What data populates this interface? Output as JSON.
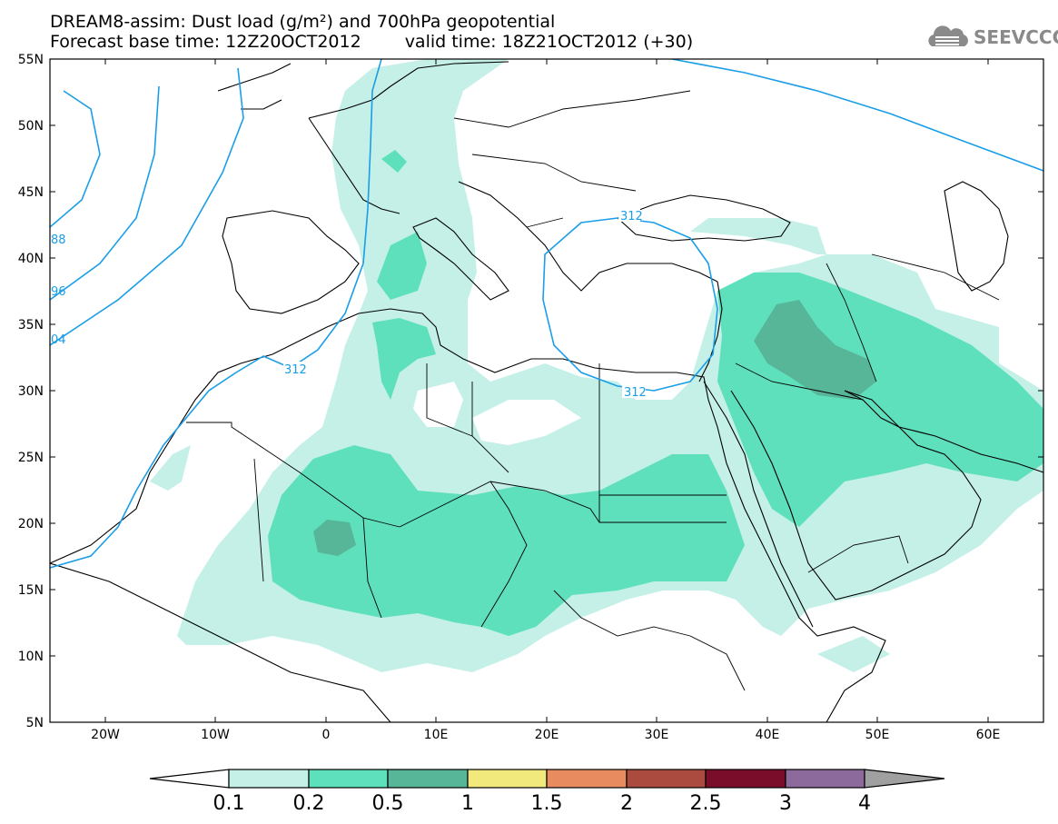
{
  "header": {
    "title_line1": "DREAM8-assim: Dust load (g/m²) and 700hPa geopotential",
    "base_time": "Forecast base time: 12Z20OCT2012",
    "valid_time": "valid time: 18Z21OCT2012 (+30)"
  },
  "logo": {
    "text": "SEEVCCC",
    "icon": "cloud-icon",
    "color": "#8a8a8a"
  },
  "map": {
    "lon_range": [
      -25,
      65
    ],
    "lat_range": [
      5,
      55
    ],
    "lat_labels": [
      "55N",
      "50N",
      "45N",
      "40N",
      "35N",
      "30N",
      "25N",
      "20N",
      "15N",
      "10N",
      "5N"
    ],
    "lon_labels": [
      "20W",
      "10W",
      "0",
      "10E",
      "20E",
      "30E",
      "40E",
      "50E",
      "60E"
    ],
    "contour_labels": [
      "312",
      "312",
      "312",
      "88",
      "96",
      "04"
    ],
    "contour_color": "#1a9ee8",
    "dust_colors": {
      "0.1-0.2": "#c4f0e8",
      "0.2-0.5": "#5fe0bc",
      "0.5-1": "#57b697"
    }
  },
  "colorbar": {
    "ticks": [
      "0.1",
      "0.2",
      "0.5",
      "1",
      "1.5",
      "2",
      "2.5",
      "3",
      "4"
    ],
    "colors": [
      "#c4f0e8",
      "#5fe0bc",
      "#57b697",
      "#f2e97c",
      "#e88c5f",
      "#ab4a3e",
      "#7a0e2a",
      "#8c6a9c",
      "#a0a0a0"
    ]
  }
}
